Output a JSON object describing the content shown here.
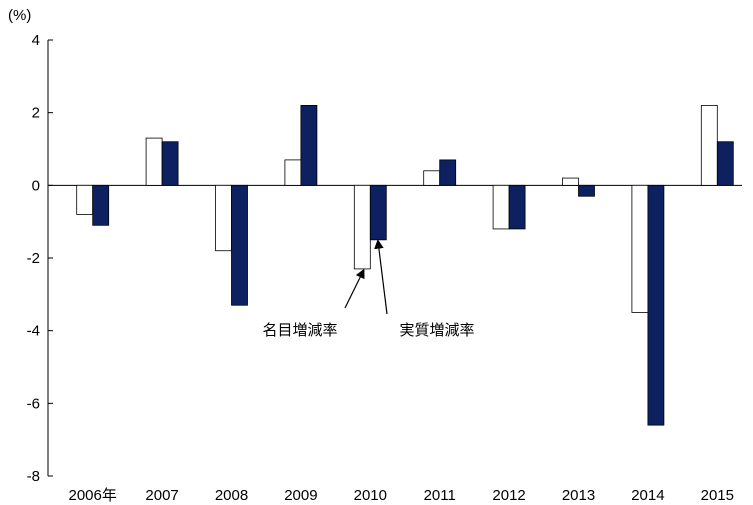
{
  "chart_data": {
    "type": "bar",
    "title": "",
    "ylabel": "(%)",
    "xlabel": "",
    "ylim": [
      -8,
      4
    ],
    "yticks": [
      4,
      2,
      0,
      -2,
      -4,
      -6,
      -8
    ],
    "ytick_labels": [
      "4",
      "2",
      "0",
      "-2",
      "-4",
      "-6",
      "-8"
    ],
    "categories": [
      "2006年",
      "2007",
      "2008",
      "2009",
      "2010",
      "2011",
      "2012",
      "2013",
      "2014",
      "2015"
    ],
    "series": [
      {
        "name": "名目増減率",
        "color": "#ffffff",
        "values": [
          -0.8,
          1.3,
          -1.8,
          0.7,
          -2.3,
          0.4,
          -1.2,
          0.2,
          -3.5,
          2.2
        ]
      },
      {
        "name": "実質増減率",
        "color": "#0d2161",
        "values": [
          -1.1,
          1.2,
          -3.3,
          2.2,
          -1.5,
          0.7,
          -1.2,
          -0.3,
          -6.6,
          1.2
        ]
      }
    ],
    "annotations": [
      {
        "text": "名目増減率",
        "series": 0,
        "category": "2010"
      },
      {
        "text": "実質増減率",
        "series": 1,
        "category": "2010"
      }
    ],
    "grid": false,
    "legend": "none"
  }
}
